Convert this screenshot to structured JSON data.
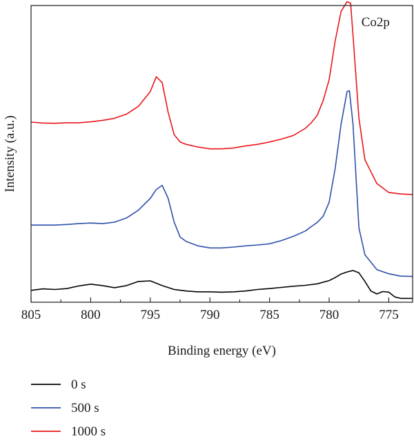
{
  "chart_data": {
    "type": "line",
    "annotation": "Co2p",
    "xlabel": "Binding energy (eV)",
    "ylabel": "Intensity (a.u.)",
    "x_axis_reversed": true,
    "xlim": [
      805,
      773
    ],
    "ylim": [
      0,
      100
    ],
    "xticks": [
      805,
      800,
      795,
      790,
      785,
      780,
      775
    ],
    "tick_labels": [
      "805",
      "800",
      "795",
      "790",
      "785",
      "780",
      "775"
    ],
    "y_ticks_shown": false,
    "grid": false,
    "legend_position": "bottom-left",
    "series": [
      {
        "name": "0 s",
        "color": "#000000",
        "x": [
          805,
          804,
          803,
          802,
          801,
          800,
          799,
          798,
          797,
          796,
          795,
          794,
          793,
          792,
          791,
          790,
          789,
          788,
          787,
          786,
          785,
          784,
          783,
          782,
          781,
          780,
          779.5,
          779,
          778.5,
          778,
          777.5,
          777,
          776.5,
          776,
          775.5,
          775,
          774.5,
          774,
          773
        ],
        "y": [
          4.0,
          4.5,
          4.3,
          4.6,
          5.5,
          6.1,
          5.6,
          4.9,
          5.6,
          7.0,
          7.2,
          5.6,
          4.3,
          3.8,
          3.5,
          3.5,
          3.4,
          3.5,
          3.8,
          4.3,
          4.6,
          5.0,
          5.4,
          5.7,
          6.2,
          7.3,
          8.3,
          9.5,
          10.2,
          10.7,
          9.9,
          7.0,
          3.8,
          2.8,
          3.6,
          3.4,
          1.8,
          1.3,
          1.3
        ]
      },
      {
        "name": "500 s",
        "color": "#2b4fa8",
        "x": [
          805,
          804,
          803,
          802,
          801,
          800,
          799,
          798,
          797,
          796,
          795,
          794.5,
          794,
          793.5,
          793,
          792.5,
          792,
          791,
          790,
          789,
          788,
          787,
          786,
          785,
          784,
          783,
          782,
          781.5,
          781,
          780.5,
          780,
          779.5,
          779,
          778.5,
          778.3,
          778,
          777.5,
          777,
          776.5,
          776,
          775,
          774,
          773
        ],
        "y": [
          26.0,
          26.0,
          26.0,
          26.2,
          26.5,
          26.7,
          26.5,
          27.0,
          28.4,
          31.0,
          35.0,
          38.0,
          39.4,
          35.0,
          27.0,
          22.0,
          20.5,
          19.0,
          18.3,
          18.3,
          18.6,
          19.0,
          19.3,
          19.7,
          20.8,
          22.2,
          24.0,
          25.5,
          26.9,
          29.0,
          33.7,
          45.0,
          60.0,
          71.0,
          71.3,
          60.0,
          25.0,
          16.0,
          13.5,
          11.0,
          9.6,
          8.8,
          8.7
        ]
      },
      {
        "name": "1000 s",
        "color": "#e8141a",
        "x": [
          805,
          804,
          803,
          802,
          801,
          800,
          799,
          798,
          797,
          796,
          795,
          794.5,
          794,
          793.5,
          793,
          792.5,
          792,
          791,
          790,
          789,
          788,
          787,
          786,
          785,
          784,
          783,
          782,
          781.5,
          781,
          780.5,
          780,
          779.5,
          779,
          778.5,
          778.2,
          778,
          777.5,
          777,
          776.5,
          776,
          775,
          774,
          773
        ],
        "y": [
          60.7,
          60.4,
          60.3,
          60.5,
          60.5,
          60.8,
          61.3,
          62.0,
          63.4,
          66.0,
          71.0,
          76.0,
          74.0,
          64.0,
          56.5,
          54.0,
          53.2,
          52.3,
          51.7,
          51.7,
          52.0,
          52.7,
          53.2,
          54.0,
          55.0,
          56.2,
          58.6,
          60.5,
          63.0,
          68.0,
          75.0,
          88.0,
          98.0,
          101.3,
          100.8,
          90.0,
          62.0,
          48.0,
          44.0,
          40.0,
          37.0,
          36.5,
          36.3
        ]
      }
    ]
  }
}
